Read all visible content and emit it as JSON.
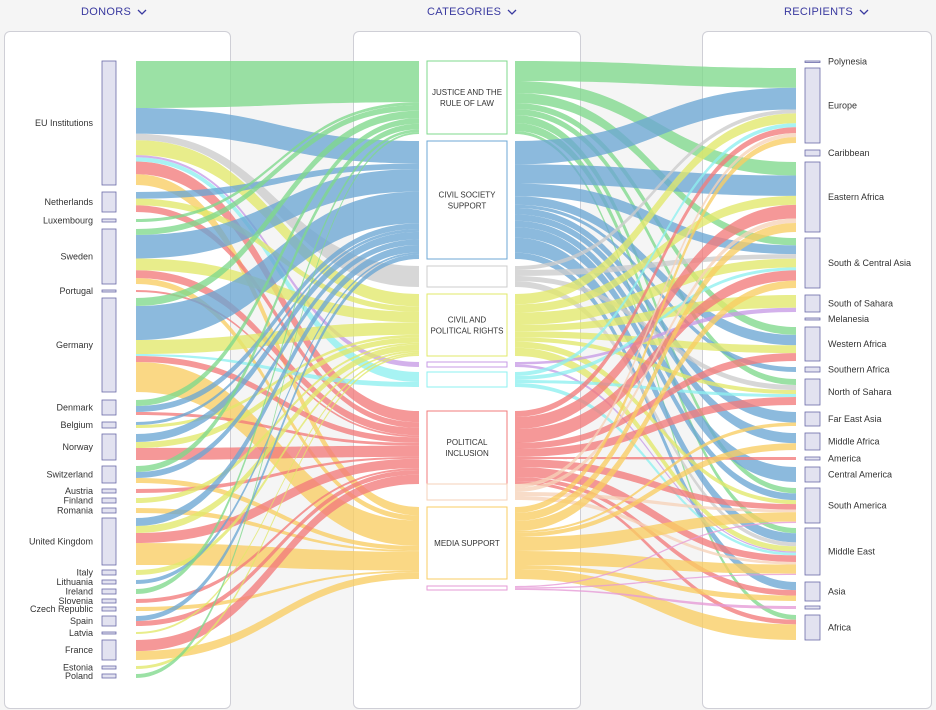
{
  "headers": {
    "donors": "DONORS",
    "categories": "CATEGORIES",
    "recipients": "RECIPIENTS"
  },
  "colors": {
    "header_text": "#3a3aa0",
    "node_fill": "#e2e2f0",
    "node_stroke": "#6b6ba8",
    "justice": "#7fd88c",
    "civil_society": "#6ca7d4",
    "grey": "#cccccc",
    "civil_political": "#e2e86a",
    "purple": "#c79be6",
    "cyan": "#8ef0f0",
    "political_inclusion": "#f27b7b",
    "peach": "#f6d2b8",
    "media": "#f9cd63",
    "pink": "#e69ad6"
  },
  "donors": [
    {
      "name": "EU Institutions"
    },
    {
      "name": "Netherlands"
    },
    {
      "name": "Luxembourg"
    },
    {
      "name": "Sweden"
    },
    {
      "name": "Portugal"
    },
    {
      "name": "Germany"
    },
    {
      "name": "Denmark"
    },
    {
      "name": "Belgium"
    },
    {
      "name": "Norway"
    },
    {
      "name": "Switzerland"
    },
    {
      "name": "Austria"
    },
    {
      "name": "Finland"
    },
    {
      "name": "Romania"
    },
    {
      "name": "United Kingdom"
    },
    {
      "name": "Italy"
    },
    {
      "name": "Lithuania"
    },
    {
      "name": "Ireland"
    },
    {
      "name": "Slovenia"
    },
    {
      "name": "Czech Republic"
    },
    {
      "name": "Spain"
    },
    {
      "name": "Latvia"
    },
    {
      "name": "France"
    },
    {
      "name": "Estonia"
    },
    {
      "name": "Poland"
    }
  ],
  "categories": [
    {
      "label": "JUSTICE AND THE|RULE OF LAW",
      "color_key": "justice"
    },
    {
      "label": "CIVIL SOCIETY|SUPPORT",
      "color_key": "civil_society"
    },
    {
      "label": "",
      "color_key": "grey"
    },
    {
      "label": "CIVIL AND|POLITICAL RIGHTS",
      "color_key": "civil_political"
    },
    {
      "label": "",
      "color_key": "purple"
    },
    {
      "label": "",
      "color_key": "cyan"
    },
    {
      "label": "POLITICAL|INCLUSION",
      "color_key": "political_inclusion"
    },
    {
      "label": "",
      "color_key": "peach"
    },
    {
      "label": "MEDIA SUPPORT",
      "color_key": "media"
    },
    {
      "label": "",
      "color_key": "pink"
    }
  ],
  "recipients": [
    {
      "name": "Polynesia"
    },
    {
      "name": "Europe"
    },
    {
      "name": "Caribbean"
    },
    {
      "name": "Eastern Africa"
    },
    {
      "name": "South & Central Asia"
    },
    {
      "name": "South of Sahara"
    },
    {
      "name": "Melanesia"
    },
    {
      "name": "Western Africa"
    },
    {
      "name": "Southern Africa"
    },
    {
      "name": "North of Sahara"
    },
    {
      "name": "Far East Asia"
    },
    {
      "name": "Middle Africa"
    },
    {
      "name": "America"
    },
    {
      "name": "Central America"
    },
    {
      "name": "South America"
    },
    {
      "name": "Middle East"
    },
    {
      "name": "Asia"
    },
    {
      "name": ""
    },
    {
      "name": "Africa"
    }
  ]
}
